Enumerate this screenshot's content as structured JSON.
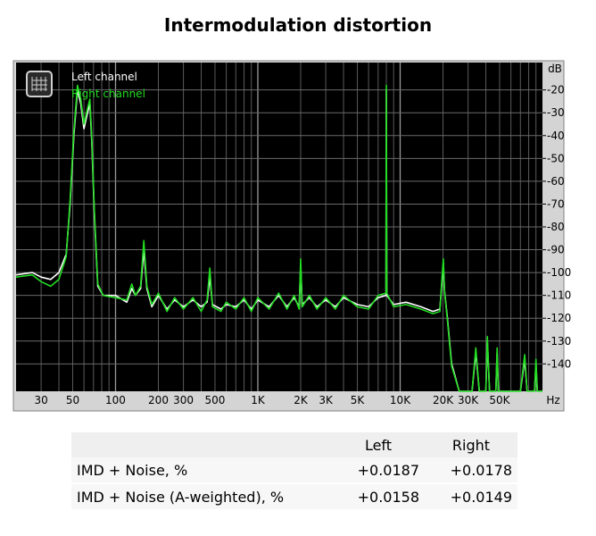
{
  "title": "Intermodulation distortion",
  "chart_data": {
    "type": "line",
    "x_scale": "log",
    "x_ticks": [
      {
        "v": 30,
        "label": "30"
      },
      {
        "v": 50,
        "label": "50"
      },
      {
        "v": 100,
        "label": "100"
      },
      {
        "v": 200,
        "label": "200"
      },
      {
        "v": 300,
        "label": "300"
      },
      {
        "v": 500,
        "label": "500"
      },
      {
        "v": 1000,
        "label": "1K"
      },
      {
        "v": 2000,
        "label": "2K"
      },
      {
        "v": 3000,
        "label": "3K"
      },
      {
        "v": 5000,
        "label": "5K"
      },
      {
        "v": 10000,
        "label": "10K"
      },
      {
        "v": 20000,
        "label": "20K"
      },
      {
        "v": 30000,
        "label": "30K"
      },
      {
        "v": 50000,
        "label": "50K"
      }
    ],
    "x_unit": "Hz",
    "xlim": [
      20,
      100000
    ],
    "y_unit": "dB",
    "ylim": [
      -152,
      -8
    ],
    "y_ticks": [
      -20,
      -30,
      -40,
      -50,
      -60,
      -70,
      -80,
      -90,
      -100,
      -110,
      -120,
      -130,
      -140
    ],
    "grid": true,
    "legend_position": "top-left",
    "background": "#000000",
    "series": [
      {
        "name": "Left channel",
        "color": "#ffffff",
        "points": [
          [
            20,
            -101
          ],
          [
            26,
            -100
          ],
          [
            30,
            -102
          ],
          [
            35,
            -103
          ],
          [
            40,
            -100
          ],
          [
            45,
            -92
          ],
          [
            48,
            -70
          ],
          [
            51,
            -40
          ],
          [
            54,
            -20
          ],
          [
            57,
            -26
          ],
          [
            60,
            -37
          ],
          [
            63,
            -31
          ],
          [
            66,
            -26
          ],
          [
            68,
            -42
          ],
          [
            71,
            -75
          ],
          [
            75,
            -106
          ],
          [
            82,
            -110
          ],
          [
            100,
            -110
          ],
          [
            120,
            -113
          ],
          [
            130,
            -107
          ],
          [
            138,
            -110
          ],
          [
            150,
            -107
          ],
          [
            158,
            -90
          ],
          [
            166,
            -107
          ],
          [
            180,
            -115
          ],
          [
            200,
            -110
          ],
          [
            230,
            -116
          ],
          [
            260,
            -112
          ],
          [
            300,
            -115
          ],
          [
            350,
            -112
          ],
          [
            400,
            -115
          ],
          [
            440,
            -113
          ],
          [
            460,
            -102
          ],
          [
            480,
            -114
          ],
          [
            550,
            -116
          ],
          [
            600,
            -114
          ],
          [
            700,
            -115
          ],
          [
            800,
            -112
          ],
          [
            900,
            -116
          ],
          [
            1000,
            -112
          ],
          [
            1200,
            -115
          ],
          [
            1400,
            -110
          ],
          [
            1600,
            -115
          ],
          [
            1800,
            -111
          ],
          [
            1950,
            -115
          ],
          [
            2000,
            -97
          ],
          [
            2050,
            -114
          ],
          [
            2300,
            -111
          ],
          [
            2600,
            -115
          ],
          [
            3000,
            -112
          ],
          [
            3500,
            -115
          ],
          [
            4000,
            -111
          ],
          [
            5000,
            -114
          ],
          [
            6000,
            -115
          ],
          [
            7000,
            -111
          ],
          [
            7950,
            -110
          ],
          [
            8000,
            -20
          ],
          [
            8050,
            -110
          ],
          [
            9000,
            -114
          ],
          [
            11000,
            -113
          ],
          [
            14000,
            -115
          ],
          [
            17000,
            -117
          ],
          [
            19000,
            -116
          ],
          [
            19800,
            -102
          ],
          [
            20100,
            -96
          ],
          [
            20500,
            -108
          ],
          [
            21500,
            -120
          ],
          [
            23000,
            -140
          ],
          [
            26000,
            -152
          ],
          [
            32000,
            -152
          ],
          [
            34000,
            -135
          ],
          [
            36000,
            -152
          ],
          [
            40000,
            -152
          ],
          [
            41000,
            -130
          ],
          [
            42500,
            -152
          ],
          [
            47000,
            -152
          ],
          [
            48000,
            -135
          ],
          [
            49000,
            -152
          ],
          [
            70000,
            -152
          ],
          [
            75000,
            -138
          ],
          [
            78000,
            -152
          ],
          [
            88000,
            -152
          ],
          [
            90000,
            -140
          ],
          [
            92000,
            -152
          ],
          [
            100000,
            -152
          ]
        ]
      },
      {
        "name": "Right channel",
        "color": "#22dd22",
        "points": [
          [
            20,
            -102
          ],
          [
            26,
            -101
          ],
          [
            30,
            -104
          ],
          [
            35,
            -106
          ],
          [
            40,
            -103
          ],
          [
            45,
            -93
          ],
          [
            48,
            -68
          ],
          [
            51,
            -38
          ],
          [
            54,
            -18
          ],
          [
            57,
            -24
          ],
          [
            60,
            -35
          ],
          [
            63,
            -29
          ],
          [
            66,
            -24
          ],
          [
            68,
            -40
          ],
          [
            71,
            -73
          ],
          [
            75,
            -105
          ],
          [
            82,
            -110
          ],
          [
            100,
            -111
          ],
          [
            120,
            -112
          ],
          [
            130,
            -105
          ],
          [
            138,
            -110
          ],
          [
            150,
            -106
          ],
          [
            158,
            -86
          ],
          [
            166,
            -106
          ],
          [
            180,
            -114
          ],
          [
            200,
            -109
          ],
          [
            230,
            -117
          ],
          [
            260,
            -111
          ],
          [
            300,
            -116
          ],
          [
            350,
            -111
          ],
          [
            400,
            -117
          ],
          [
            440,
            -112
          ],
          [
            460,
            -98
          ],
          [
            480,
            -115
          ],
          [
            550,
            -117
          ],
          [
            600,
            -113
          ],
          [
            700,
            -116
          ],
          [
            800,
            -111
          ],
          [
            900,
            -117
          ],
          [
            1000,
            -111
          ],
          [
            1200,
            -116
          ],
          [
            1400,
            -109
          ],
          [
            1600,
            -116
          ],
          [
            1800,
            -110
          ],
          [
            1950,
            -116
          ],
          [
            2000,
            -94
          ],
          [
            2050,
            -115
          ],
          [
            2300,
            -110
          ],
          [
            2600,
            -116
          ],
          [
            3000,
            -111
          ],
          [
            3500,
            -116
          ],
          [
            4000,
            -110
          ],
          [
            5000,
            -115
          ],
          [
            6000,
            -116
          ],
          [
            7000,
            -110
          ],
          [
            7950,
            -109
          ],
          [
            8000,
            -18
          ],
          [
            8050,
            -109
          ],
          [
            9000,
            -115
          ],
          [
            11000,
            -114
          ],
          [
            14000,
            -116
          ],
          [
            17000,
            -118
          ],
          [
            19000,
            -117
          ],
          [
            19800,
            -100
          ],
          [
            20100,
            -94
          ],
          [
            20500,
            -108
          ],
          [
            21500,
            -121
          ],
          [
            23000,
            -141
          ],
          [
            26000,
            -152
          ],
          [
            32000,
            -152
          ],
          [
            34000,
            -133
          ],
          [
            36000,
            -152
          ],
          [
            40000,
            -152
          ],
          [
            41000,
            -128
          ],
          [
            42500,
            -152
          ],
          [
            47000,
            -152
          ],
          [
            48000,
            -133
          ],
          [
            49000,
            -152
          ],
          [
            70000,
            -152
          ],
          [
            75000,
            -136
          ],
          [
            78000,
            -152
          ],
          [
            88000,
            -152
          ],
          [
            90000,
            -138
          ],
          [
            92000,
            -152
          ],
          [
            100000,
            -152
          ]
        ]
      }
    ]
  },
  "results_table": {
    "columns": [
      "",
      "Left",
      "Right"
    ],
    "rows": [
      {
        "label": "IMD + Noise, %",
        "left": "+0.0187",
        "right": "+0.0178"
      },
      {
        "label": "IMD + Noise (A-weighted), %",
        "left": "+0.0158",
        "right": "+0.0149"
      }
    ]
  }
}
